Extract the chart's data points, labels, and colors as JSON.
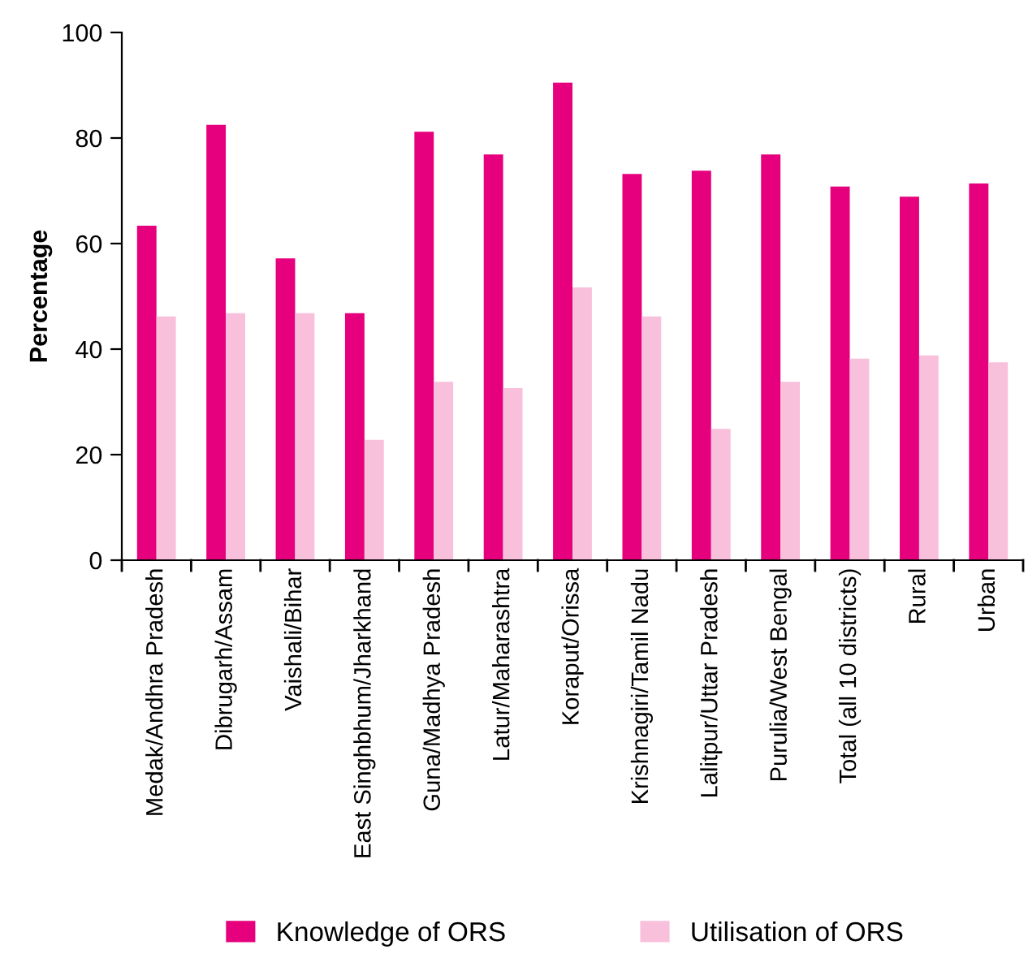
{
  "chart_data": {
    "type": "bar",
    "ylabel": "Percentage",
    "categories": [
      "Medak/Andhra Pradesh",
      "Dibrugarh/Assam",
      "Vaishali/Bihar",
      "East Singhbhum/Jharkhand",
      "Guna/Madhya Pradesh",
      "Latur/Maharashtra",
      "Koraput/Orissa",
      "Krishnagiri/Tamil Nadu",
      "Lalitpur/Uttar Pradesh",
      "Purulia/West Bengal",
      "Total (all 10 districts)",
      "Rural",
      "Urban"
    ],
    "series": [
      {
        "name": "Knowledge of ORS",
        "color": "#e6007e",
        "values": [
          63.4,
          82.5,
          57.2,
          46.8,
          81.2,
          76.9,
          90.5,
          73.2,
          73.8,
          76.9,
          70.8,
          68.9,
          71.4
        ]
      },
      {
        "name": "Utilisation of ORS",
        "color": "#f9c0dc",
        "values": [
          46.2,
          46.8,
          46.8,
          22.8,
          33.8,
          32.6,
          51.7,
          46.2,
          24.9,
          33.8,
          38.2,
          38.8,
          37.5
        ]
      }
    ],
    "ylim": [
      0,
      100
    ],
    "yticks": [
      0,
      20,
      40,
      60,
      80,
      100
    ],
    "grid": false,
    "legend": "bottom"
  }
}
